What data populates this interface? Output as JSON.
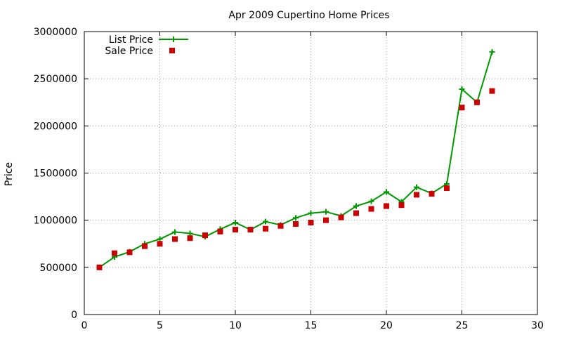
{
  "chart_data": {
    "type": "line",
    "title": "Apr 2009 Cupertino Home Prices",
    "xlabel": "",
    "ylabel": "Price",
    "xlim": [
      0,
      30
    ],
    "ylim": [
      0,
      3000000
    ],
    "xticks": [
      0,
      5,
      10,
      15,
      20,
      25,
      30
    ],
    "yticks": [
      0,
      500000,
      1000000,
      1500000,
      2000000,
      2500000,
      3000000
    ],
    "grid": true,
    "legend_position": "top-left",
    "x": [
      1,
      2,
      3,
      4,
      5,
      6,
      7,
      8,
      9,
      10,
      11,
      12,
      13,
      14,
      15,
      16,
      17,
      18,
      19,
      20,
      21,
      22,
      23,
      24,
      25,
      26,
      27
    ],
    "series": [
      {
        "name": "List Price",
        "style": "line-with-plus-markers",
        "color": "#009900",
        "values": [
          500000,
          610000,
          665000,
          750000,
          800000,
          875000,
          860000,
          825000,
          905000,
          975000,
          900000,
          985000,
          950000,
          1025000,
          1075000,
          1090000,
          1045000,
          1150000,
          1200000,
          1300000,
          1195000,
          1350000,
          1285000,
          1385000,
          2390000,
          2250000,
          2785000
        ]
      },
      {
        "name": "Sale Price",
        "style": "square-markers",
        "color": "#cc0000",
        "values": [
          500000,
          650000,
          660000,
          725000,
          750000,
          800000,
          810000,
          840000,
          880000,
          900000,
          900000,
          910000,
          940000,
          960000,
          975000,
          1000000,
          1030000,
          1075000,
          1120000,
          1150000,
          1160000,
          1270000,
          1280000,
          1340000,
          2195000,
          2250000,
          2370000
        ]
      }
    ]
  }
}
